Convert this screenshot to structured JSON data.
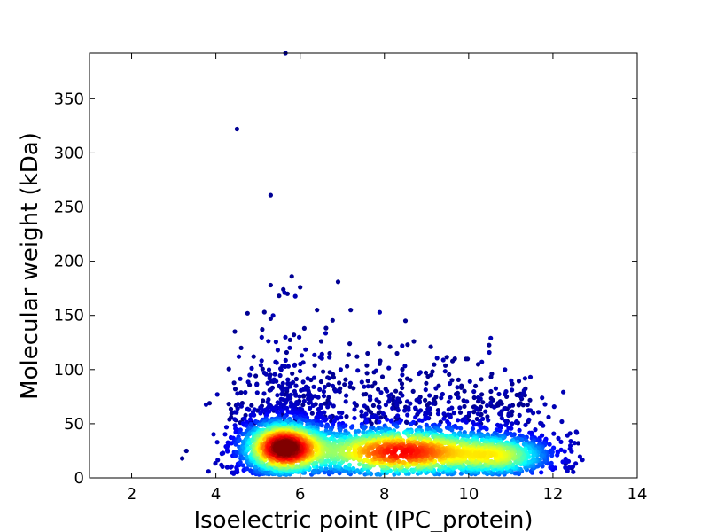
{
  "chart_data": {
    "type": "scatter",
    "title": "",
    "xlabel": "Isoelectric point (IPC_protein)",
    "ylabel": "Molecular weight (kDa)",
    "xlim": [
      1,
      14
    ],
    "ylim": [
      0,
      392
    ],
    "xticks": [
      2,
      4,
      6,
      8,
      10,
      12,
      14
    ],
    "yticks": [
      0,
      50,
      100,
      150,
      200,
      250,
      300,
      350
    ],
    "grid": false,
    "legend": "none",
    "color_scale": "density (jet colormap: blue = sparse, red = dense)",
    "colors": [
      "#00007f",
      "#0000ff",
      "#007fff",
      "#00ffff",
      "#7fff7f",
      "#ffff00",
      "#ff7f00",
      "#ff0000",
      "#7f0000"
    ],
    "clusters": [
      {
        "center_x": 5.6,
        "center_y": 28,
        "spread_x": 0.55,
        "spread_y": 14,
        "points": 1600
      },
      {
        "center_x": 8.4,
        "center_y": 24,
        "spread_x": 1.3,
        "spread_y": 13,
        "points": 1400
      },
      {
        "center_x": 10.8,
        "center_y": 20,
        "spread_x": 0.7,
        "spread_y": 11,
        "points": 700
      }
    ],
    "outliers": [
      {
        "x": 5.65,
        "y": 392
      },
      {
        "x": 4.5,
        "y": 322
      },
      {
        "x": 5.3,
        "y": 261
      },
      {
        "x": 5.8,
        "y": 186
      },
      {
        "x": 5.3,
        "y": 178
      },
      {
        "x": 6.9,
        "y": 181
      },
      {
        "x": 6.0,
        "y": 176
      },
      {
        "x": 5.6,
        "y": 174
      },
      {
        "x": 5.7,
        "y": 170
      },
      {
        "x": 5.5,
        "y": 168
      },
      {
        "x": 7.2,
        "y": 155
      },
      {
        "x": 6.4,
        "y": 155
      },
      {
        "x": 4.75,
        "y": 152
      },
      {
        "x": 5.15,
        "y": 153
      },
      {
        "x": 5.3,
        "y": 147
      },
      {
        "x": 8.5,
        "y": 145
      },
      {
        "x": 4.45,
        "y": 135
      },
      {
        "x": 6.1,
        "y": 138
      },
      {
        "x": 5.1,
        "y": 137
      },
      {
        "x": 5.85,
        "y": 132
      },
      {
        "x": 6.5,
        "y": 126
      },
      {
        "x": 8.7,
        "y": 126
      },
      {
        "x": 9.1,
        "y": 121
      },
      {
        "x": 8.55,
        "y": 123
      },
      {
        "x": 4.6,
        "y": 120
      },
      {
        "x": 3.85,
        "y": 69
      },
      {
        "x": 3.3,
        "y": 25
      },
      {
        "x": 3.2,
        "y": 18
      },
      {
        "x": 12.6,
        "y": 32
      },
      {
        "x": 12.3,
        "y": 13
      },
      {
        "x": 12.45,
        "y": 9
      },
      {
        "x": 10.3,
        "y": 91
      },
      {
        "x": 10.9,
        "y": 75
      },
      {
        "x": 11.2,
        "y": 76
      },
      {
        "x": 9.9,
        "y": 80
      },
      {
        "x": 7.6,
        "y": 115
      },
      {
        "x": 8.3,
        "y": 115
      },
      {
        "x": 7.9,
        "y": 108
      },
      {
        "x": 6.7,
        "y": 115
      },
      {
        "x": 7.35,
        "y": 112
      }
    ]
  }
}
